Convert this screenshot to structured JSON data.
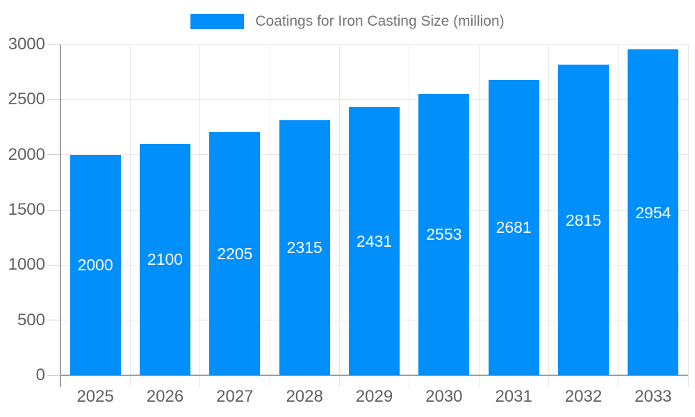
{
  "legend": {
    "label": "Coatings for Iron Casting Size (million)"
  },
  "colors": {
    "bar": "#008FFB",
    "grid": "#e6e6e6",
    "axis_line": "#9e9e9e",
    "tick": "#cccccc",
    "axis_label": "#616161",
    "legend_text": "#757575",
    "data_label": "#ffffff",
    "background": "#ffffff"
  },
  "chart_data": {
    "type": "bar",
    "title": "Coatings for Iron Casting Size (million)",
    "categories": [
      "2025",
      "2026",
      "2027",
      "2028",
      "2029",
      "2030",
      "2031",
      "2032",
      "2033"
    ],
    "values": [
      2000,
      2100,
      2205,
      2315,
      2431,
      2553,
      2681,
      2815,
      2954
    ],
    "series": [
      {
        "name": "Coatings for Iron Casting Size (million)",
        "values": [
          2000,
          2100,
          2205,
          2315,
          2431,
          2553,
          2681,
          2815,
          2954
        ]
      }
    ],
    "xlabel": "",
    "ylabel": "",
    "ylim": [
      0,
      3000
    ],
    "yticks": [
      0,
      500,
      1000,
      1500,
      2000,
      2500,
      3000
    ],
    "grid": "on",
    "legend_position": "top-center",
    "data_labels": "centered-inside-bars"
  }
}
